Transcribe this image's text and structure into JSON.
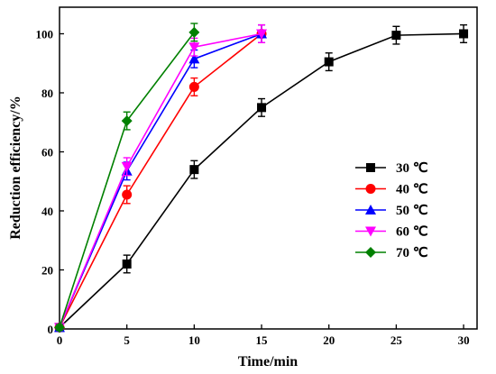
{
  "chart_data": {
    "type": "line",
    "xlabel": "Time/min",
    "ylabel": "Reduction efficiency/%",
    "xlim": [
      0,
      31
    ],
    "ylim": [
      0,
      109
    ],
    "xticks": [
      0,
      5,
      10,
      15,
      20,
      25,
      30
    ],
    "yticks": [
      0,
      20,
      40,
      60,
      80,
      100
    ],
    "legend_position": "right-center",
    "series": [
      {
        "name": "30 ℃",
        "color": "#000000",
        "marker": "square",
        "x": [
          0,
          5,
          10,
          15,
          20,
          25,
          30
        ],
        "y": [
          0.5,
          22,
          54,
          75,
          90.5,
          99.5,
          100
        ],
        "err": [
          1,
          3,
          3,
          3,
          3,
          3,
          3
        ]
      },
      {
        "name": "40 ℃",
        "color": "#ff0000",
        "marker": "circle",
        "x": [
          0,
          5,
          10,
          15
        ],
        "y": [
          0.5,
          45.5,
          82,
          100
        ],
        "err": [
          1,
          3,
          3,
          3
        ]
      },
      {
        "name": "50 ℃",
        "color": "#0000ff",
        "marker": "triangle-up",
        "x": [
          0,
          5,
          10,
          15
        ],
        "y": [
          0.5,
          53.5,
          91.5,
          100
        ],
        "err": [
          1,
          3,
          3,
          3
        ]
      },
      {
        "name": "60 ℃",
        "color": "#ff00ff",
        "marker": "triangle-down",
        "x": [
          0,
          5,
          10,
          15
        ],
        "y": [
          0.5,
          55,
          95.5,
          100
        ],
        "err": [
          1,
          3,
          3,
          3
        ]
      },
      {
        "name": "70 ℃",
        "color": "#008000",
        "marker": "diamond",
        "x": [
          0,
          5,
          10
        ],
        "y": [
          0.5,
          70.5,
          100.5
        ],
        "err": [
          1,
          3,
          3
        ]
      }
    ]
  }
}
